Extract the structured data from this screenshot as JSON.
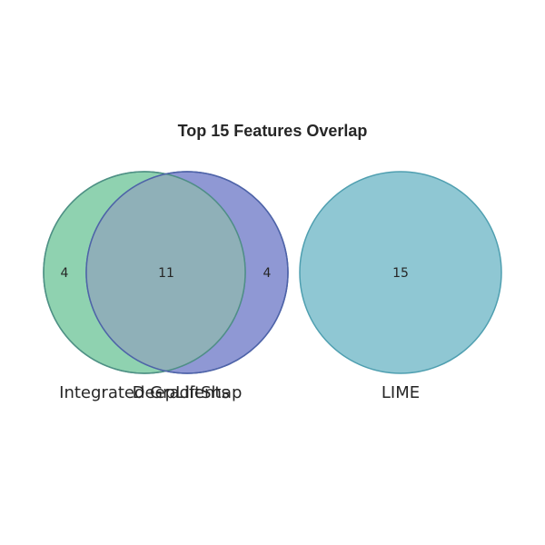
{
  "title": "Top 15 Features Overlap",
  "colors": {
    "integrated_gradients": "#5fbf8f",
    "deeplift_shap": "#5a67c0",
    "overlap": "#8fb0b8",
    "lime": "#5fafc0"
  },
  "sets": [
    {
      "id": "integrated_gradients",
      "label": "Integrated Gradients",
      "only_count": "4"
    },
    {
      "id": "deeplift_shap",
      "label": "DeepLiftShap",
      "only_count": "4"
    },
    {
      "id": "lime",
      "label": "LIME",
      "only_count": "15"
    }
  ],
  "overlap": {
    "sets": [
      "integrated_gradients",
      "deeplift_shap"
    ],
    "count": "11"
  }
}
